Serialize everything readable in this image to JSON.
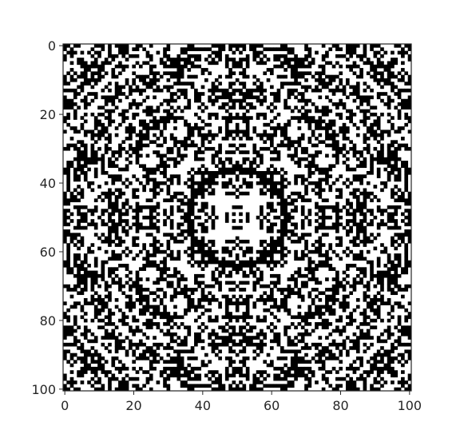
{
  "chart_data": {
    "type": "heatmap",
    "rows": 101,
    "cols": 101,
    "cmap": "gray",
    "colors": {
      "zero": "#ffffff",
      "one": "#000000",
      "axis": "#262626"
    },
    "symmetry": "radial (8-fold, centered at 50,50)",
    "xlim": [
      0,
      100
    ],
    "ylim": [
      100,
      0
    ],
    "x_ticks": [
      0,
      20,
      40,
      60,
      80,
      100
    ],
    "y_ticks": [
      0,
      20,
      40,
      60,
      80,
      100
    ],
    "x_tick_labels": [
      "0",
      "20",
      "40",
      "60",
      "80",
      "100"
    ],
    "y_tick_labels": [
      "0",
      "20",
      "40",
      "60",
      "80",
      "100"
    ],
    "grid": false,
    "legend": "none",
    "title": "",
    "xlabel": "",
    "ylabel": ""
  }
}
